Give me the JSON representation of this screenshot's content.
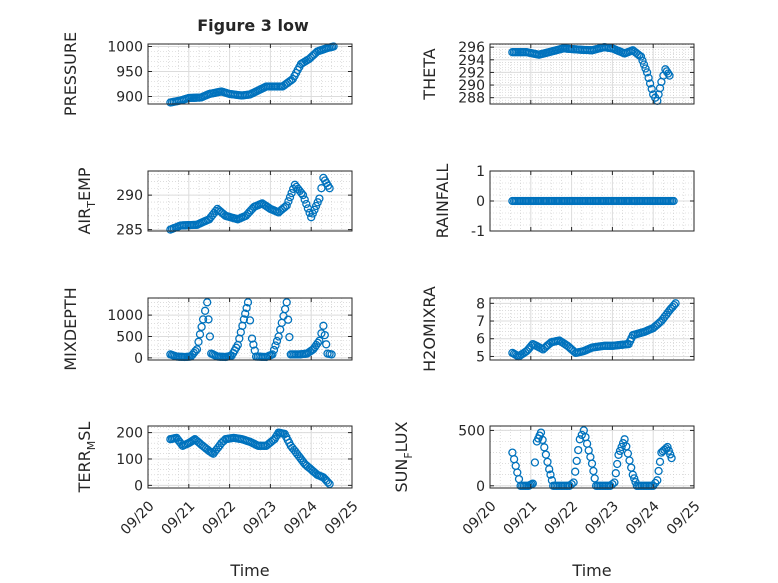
{
  "figure": {
    "title": "Figure 3 low"
  },
  "style": {
    "marker_color": "#0072BD",
    "grid_color": "#c8c8c8",
    "axis_color": "#262626"
  },
  "date_ticks": [
    "09/20",
    "09/21",
    "09/22",
    "09/23",
    "09/24",
    "09/25"
  ],
  "chart_data": [
    {
      "id": "pressure",
      "type": "scatter",
      "ylabel": "PRESSURE",
      "xlabel": "",
      "ylim": [
        885,
        1005
      ],
      "yticks": [
        "900",
        "950",
        "1000"
      ],
      "ytick_values": [
        900,
        950,
        1000
      ],
      "xlim": [
        "09/20",
        "09/25"
      ],
      "marker": "circle",
      "anchors": [
        [
          0.55,
          888
        ],
        [
          0.8,
          892
        ],
        [
          1.0,
          897
        ],
        [
          1.3,
          898
        ],
        [
          1.5,
          905
        ],
        [
          1.8,
          910
        ],
        [
          2.0,
          905
        ],
        [
          2.3,
          902
        ],
        [
          2.5,
          904
        ],
        [
          2.7,
          912
        ],
        [
          2.9,
          920
        ],
        [
          3.3,
          920
        ],
        [
          3.55,
          935
        ],
        [
          3.75,
          965
        ],
        [
          3.95,
          975
        ],
        [
          4.15,
          990
        ],
        [
          4.4,
          997
        ],
        [
          4.55,
          1000
        ]
      ]
    },
    {
      "id": "theta",
      "type": "scatter",
      "ylabel": "THETA",
      "xlabel": "",
      "ylim": [
        287,
        296.5
      ],
      "yticks": [
        "288",
        "290",
        "292",
        "294",
        "296"
      ],
      "ytick_values": [
        288,
        290,
        292,
        294,
        296
      ],
      "xlim": [
        "09/20",
        "09/25"
      ],
      "marker": "circle",
      "anchors": [
        [
          0.55,
          295.2
        ],
        [
          0.9,
          295.2
        ],
        [
          1.2,
          294.8
        ],
        [
          1.5,
          295.3
        ],
        [
          1.8,
          295.8
        ],
        [
          2.2,
          295.6
        ],
        [
          2.5,
          295.5
        ],
        [
          2.8,
          296.0
        ],
        [
          3.0,
          295.8
        ],
        [
          3.3,
          295.0
        ],
        [
          3.5,
          295.5
        ],
        [
          3.7,
          294.5
        ],
        [
          3.85,
          292.0
        ],
        [
          4.0,
          288.5
        ],
        [
          4.1,
          287.5
        ],
        [
          4.2,
          290.5
        ],
        [
          4.3,
          292.5
        ],
        [
          4.4,
          291.5
        ]
      ]
    },
    {
      "id": "air-temp",
      "type": "scatter",
      "ylabel": "AIR_TEMP",
      "xlabel": "",
      "ylim": [
        284.8,
        293.5
      ],
      "yticks": [
        "285",
        "290"
      ],
      "ytick_values": [
        285,
        290
      ],
      "xlim": [
        "09/20",
        "09/25"
      ],
      "marker": "circle",
      "anchors": [
        [
          0.55,
          285.0
        ],
        [
          0.8,
          285.6
        ],
        [
          1.2,
          285.7
        ],
        [
          1.5,
          286.5
        ],
        [
          1.7,
          288.0
        ],
        [
          1.9,
          287.0
        ],
        [
          2.2,
          286.5
        ],
        [
          2.4,
          287.0
        ],
        [
          2.6,
          288.3
        ],
        [
          2.8,
          288.8
        ],
        [
          3.0,
          288.0
        ],
        [
          3.2,
          287.5
        ],
        [
          3.4,
          288.5
        ],
        [
          3.6,
          291.5
        ],
        [
          3.8,
          290.0
        ],
        [
          4.0,
          286.8
        ],
        [
          4.2,
          289.5
        ],
        [
          4.3,
          292.5
        ],
        [
          4.45,
          291.0
        ]
      ]
    },
    {
      "id": "rainfall",
      "type": "scatter",
      "ylabel": "RAINFALL",
      "xlabel": "",
      "ylim": [
        -1,
        1
      ],
      "yticks": [
        "-1",
        "0",
        "1"
      ],
      "ytick_values": [
        -1,
        0,
        1
      ],
      "xlim": [
        "09/20",
        "09/25"
      ],
      "marker": "circle",
      "anchors": [
        [
          0.55,
          0
        ],
        [
          4.5,
          0
        ]
      ]
    },
    {
      "id": "mixdepth",
      "type": "scatter",
      "ylabel": "MIXDEPTH",
      "xlabel": "",
      "ylim": [
        -50,
        1400
      ],
      "yticks": [
        "0",
        "500",
        "1000"
      ],
      "ytick_values": [
        0,
        500,
        1000
      ],
      "xlim": [
        "09/20",
        "09/25"
      ],
      "marker": "circle",
      "anchors": [
        [
          0.55,
          80
        ],
        [
          0.7,
          30
        ],
        [
          0.9,
          20
        ],
        [
          1.05,
          30
        ],
        [
          1.2,
          200
        ],
        [
          1.35,
          900
        ],
        [
          1.45,
          1300
        ],
        [
          1.55,
          100
        ],
        [
          1.7,
          30
        ],
        [
          1.9,
          20
        ],
        [
          2.05,
          50
        ],
        [
          2.2,
          300
        ],
        [
          2.35,
          900
        ],
        [
          2.45,
          1300
        ],
        [
          2.55,
          450
        ],
        [
          2.65,
          30
        ],
        [
          2.9,
          20
        ],
        [
          3.05,
          80
        ],
        [
          3.2,
          500
        ],
        [
          3.4,
          1300
        ],
        [
          3.5,
          80
        ],
        [
          3.7,
          80
        ],
        [
          3.9,
          100
        ],
        [
          4.05,
          200
        ],
        [
          4.2,
          400
        ],
        [
          4.3,
          750
        ],
        [
          4.4,
          100
        ],
        [
          4.5,
          80
        ]
      ]
    },
    {
      "id": "h2omixra",
      "type": "scatter",
      "ylabel": "H2OMIXRA",
      "xlabel": "",
      "ylim": [
        4.8,
        8.3
      ],
      "yticks": [
        "5",
        "6",
        "7",
        "8"
      ],
      "ytick_values": [
        5,
        6,
        7,
        8
      ],
      "xlim": [
        "09/20",
        "09/25"
      ],
      "marker": "circle",
      "anchors": [
        [
          0.55,
          5.2
        ],
        [
          0.7,
          5.0
        ],
        [
          0.9,
          5.3
        ],
        [
          1.05,
          5.7
        ],
        [
          1.3,
          5.4
        ],
        [
          1.5,
          5.8
        ],
        [
          1.7,
          5.9
        ],
        [
          1.9,
          5.6
        ],
        [
          2.1,
          5.2
        ],
        [
          2.3,
          5.3
        ],
        [
          2.5,
          5.5
        ],
        [
          2.8,
          5.6
        ],
        [
          3.0,
          5.6
        ],
        [
          3.4,
          5.7
        ],
        [
          3.5,
          6.2
        ],
        [
          3.8,
          6.4
        ],
        [
          4.0,
          6.6
        ],
        [
          4.2,
          7.0
        ],
        [
          4.4,
          7.6
        ],
        [
          4.55,
          8.0
        ]
      ]
    },
    {
      "id": "terr-msl",
      "type": "scatter",
      "ylabel": "TERR_MSL",
      "xlabel": "Time",
      "ylim": [
        -10,
        225
      ],
      "yticks": [
        "0",
        "100",
        "200"
      ],
      "ytick_values": [
        0,
        100,
        200
      ],
      "xlim": [
        "09/20",
        "09/25"
      ],
      "marker": "circle",
      "anchors": [
        [
          0.55,
          175
        ],
        [
          0.7,
          180
        ],
        [
          0.85,
          150
        ],
        [
          1.0,
          160
        ],
        [
          1.15,
          175
        ],
        [
          1.3,
          155
        ],
        [
          1.5,
          130
        ],
        [
          1.6,
          120
        ],
        [
          1.8,
          160
        ],
        [
          1.9,
          175
        ],
        [
          2.1,
          180
        ],
        [
          2.3,
          175
        ],
        [
          2.5,
          165
        ],
        [
          2.7,
          150
        ],
        [
          2.9,
          150
        ],
        [
          3.1,
          175
        ],
        [
          3.2,
          200
        ],
        [
          3.35,
          195
        ],
        [
          3.5,
          150
        ],
        [
          3.7,
          110
        ],
        [
          3.85,
          80
        ],
        [
          4.0,
          60
        ],
        [
          4.15,
          40
        ],
        [
          4.3,
          30
        ],
        [
          4.45,
          5
        ]
      ]
    },
    {
      "id": "sun-flux",
      "type": "scatter",
      "ylabel": "SUN_FLUX",
      "xlabel": "Time",
      "ylim": [
        -20,
        540
      ],
      "yticks": [
        "0",
        "500"
      ],
      "ytick_values": [
        0,
        500
      ],
      "xlim": [
        "09/20",
        "09/25"
      ],
      "marker": "circle",
      "anchors": [
        [
          0.55,
          300
        ],
        [
          0.75,
          0
        ],
        [
          0.95,
          0
        ],
        [
          1.05,
          20
        ],
        [
          1.15,
          400
        ],
        [
          1.25,
          480
        ],
        [
          1.45,
          150
        ],
        [
          1.55,
          0
        ],
        [
          1.95,
          0
        ],
        [
          2.05,
          30
        ],
        [
          2.2,
          420
        ],
        [
          2.3,
          500
        ],
        [
          2.5,
          200
        ],
        [
          2.6,
          0
        ],
        [
          2.95,
          0
        ],
        [
          3.05,
          30
        ],
        [
          3.15,
          280
        ],
        [
          3.3,
          420
        ],
        [
          3.5,
          100
        ],
        [
          3.6,
          0
        ],
        [
          4.0,
          0
        ],
        [
          4.1,
          50
        ],
        [
          4.2,
          300
        ],
        [
          4.35,
          350
        ],
        [
          4.45,
          250
        ]
      ]
    }
  ]
}
